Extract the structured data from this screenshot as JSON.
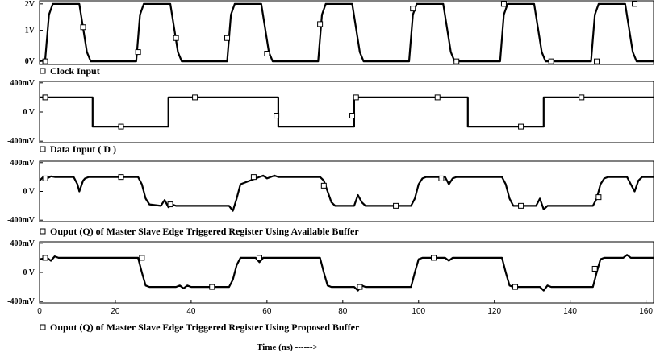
{
  "chart_data": {
    "type": "line",
    "xlabel": "Time (ns) ------>",
    "xlim": [
      0,
      162
    ],
    "xticks": [
      0,
      20,
      40,
      60,
      80,
      100,
      120,
      140,
      160
    ],
    "panels": [
      {
        "caption": "Clock Input",
        "ylim": [
          -0.1,
          1.95
        ],
        "yticks": [
          {
            "v": 1.85,
            "label": "2V"
          },
          {
            "v": 1.0,
            "label": "1V"
          },
          {
            "v": 0.0,
            "label": "0V"
          }
        ],
        "x": [
          0,
          1.5,
          2.5,
          3.5,
          10.5,
          12.5,
          13.5,
          25.5,
          26.5,
          27.5,
          34.5,
          36.5,
          37.5,
          49.5,
          50.5,
          51.5,
          58.5,
          60.5,
          61.5,
          73.5,
          74.5,
          75.5,
          82.5,
          84.5,
          85.5,
          97.5,
          98.5,
          99.5,
          106.5,
          108.5,
          109.5,
          121.5,
          122.5,
          123.5,
          130.5,
          132.5,
          133.5,
          145.5,
          146.5,
          147.5,
          154.5,
          156.5,
          157.5,
          162
        ],
        "y": [
          0,
          0.05,
          1.5,
          1.85,
          1.85,
          0.3,
          0,
          0,
          1.5,
          1.85,
          1.85,
          0.3,
          0,
          0,
          1.5,
          1.85,
          1.85,
          0.3,
          0,
          0,
          1.5,
          1.85,
          1.85,
          0.3,
          0,
          0,
          1.5,
          1.85,
          1.85,
          0.3,
          0,
          0,
          1.5,
          1.85,
          1.85,
          0.3,
          0,
          0,
          1.5,
          1.85,
          1.85,
          0.3,
          0,
          0
        ],
        "markers": [
          [
            1.5,
            0.0
          ],
          [
            11.5,
            1.1
          ],
          [
            26,
            0.3
          ],
          [
            36,
            0.75
          ],
          [
            49.5,
            0.75
          ],
          [
            60,
            0.25
          ],
          [
            74,
            1.2
          ],
          [
            98.5,
            1.7
          ],
          [
            110,
            0.0
          ],
          [
            122.5,
            1.85
          ],
          [
            135,
            0.0
          ],
          [
            147,
            0.0
          ],
          [
            157,
            1.85
          ]
        ]
      },
      {
        "caption": "Data Input ( D )",
        "ylim": [
          -0.42,
          0.42
        ],
        "yticks": [
          {
            "v": 0.4,
            "label": "400mV"
          },
          {
            "v": 0.0,
            "label": "0 V"
          },
          {
            "v": -0.4,
            "label": "-400mV"
          }
        ],
        "x": [
          0,
          14,
          14,
          34,
          34,
          63,
          63,
          83,
          83,
          113,
          113,
          133,
          133,
          162
        ],
        "y": [
          0.2,
          0.2,
          -0.2,
          -0.2,
          0.2,
          0.2,
          -0.2,
          -0.2,
          0.2,
          0.2,
          -0.2,
          -0.2,
          0.2,
          0.2
        ],
        "markers": [
          [
            1.5,
            0.2
          ],
          [
            21.5,
            -0.2
          ],
          [
            41,
            0.2
          ],
          [
            62.5,
            -0.05
          ],
          [
            82.5,
            -0.05
          ],
          [
            83.5,
            0.2
          ],
          [
            105,
            0.2
          ],
          [
            127,
            -0.2
          ],
          [
            143,
            0.2
          ]
        ]
      },
      {
        "caption": "Ouput (Q) of Master Slave Edge Triggered Register Using Available Buffer",
        "ylim": [
          -0.42,
          0.42
        ],
        "yticks": [
          {
            "v": 0.4,
            "label": "400mV"
          },
          {
            "v": 0.0,
            "label": "0 V"
          },
          {
            "v": -0.4,
            "label": "-400mV"
          }
        ],
        "x": [
          0,
          1,
          2,
          3,
          4,
          9,
          10,
          10.5,
          11.5,
          12,
          13,
          26,
          27,
          28,
          29,
          32,
          33,
          34,
          35,
          36,
          37,
          50,
          51,
          52,
          53,
          58,
          59,
          60,
          62,
          63,
          74,
          75,
          76,
          77,
          78,
          83,
          84,
          85,
          86,
          98,
          99,
          100,
          101,
          102,
          107,
          108,
          109,
          110,
          111,
          122,
          123,
          124,
          125,
          126,
          131,
          132,
          133,
          134,
          135,
          146,
          147,
          148,
          149,
          150,
          155,
          156,
          157,
          158,
          159,
          162
        ],
        "y": [
          0.15,
          0.2,
          0.18,
          0.21,
          0.2,
          0.2,
          0.1,
          0.0,
          0.15,
          0.18,
          0.2,
          0.2,
          0.1,
          -0.1,
          -0.18,
          -0.2,
          -0.12,
          -0.22,
          -0.18,
          -0.2,
          -0.2,
          -0.2,
          -0.27,
          -0.1,
          0.1,
          0.2,
          0.22,
          0.18,
          0.22,
          0.2,
          0.2,
          0.15,
          0.0,
          -0.15,
          -0.2,
          -0.2,
          -0.05,
          -0.15,
          -0.2,
          -0.2,
          -0.1,
          0.1,
          0.18,
          0.2,
          0.2,
          0.1,
          0.18,
          0.2,
          0.2,
          0.2,
          0.1,
          -0.1,
          -0.2,
          -0.2,
          -0.2,
          -0.1,
          -0.25,
          -0.2,
          -0.2,
          -0.2,
          -0.1,
          0.1,
          0.18,
          0.2,
          0.2,
          0.1,
          0.0,
          0.15,
          0.2,
          0.2
        ],
        "markers": [
          [
            1.5,
            0.18
          ],
          [
            21.5,
            0.2
          ],
          [
            34.5,
            -0.18
          ],
          [
            56.5,
            0.2
          ],
          [
            75,
            0.08
          ],
          [
            94,
            -0.2
          ],
          [
            106,
            0.18
          ],
          [
            127,
            -0.2
          ],
          [
            147.5,
            -0.08
          ]
        ]
      },
      {
        "caption": "Ouput (Q) of Master Slave Edge Triggered Register Using Proposed Buffer",
        "ylim": [
          -0.42,
          0.42
        ],
        "yticks": [
          {
            "v": 0.4,
            "label": "400mV"
          },
          {
            "v": 0.0,
            "label": "0 V"
          },
          {
            "v": -0.4,
            "label": "-400mV"
          }
        ],
        "x": [
          0,
          2,
          3,
          4,
          5,
          26,
          27,
          28,
          29,
          36,
          37,
          38,
          39,
          40,
          50,
          51,
          52,
          53,
          57,
          58,
          59,
          74,
          75,
          76,
          77,
          83,
          84,
          85,
          86,
          98,
          99,
          100,
          101,
          107,
          108,
          109,
          122,
          123,
          124,
          125,
          132,
          133,
          134,
          135,
          146,
          147,
          148,
          149,
          154,
          155,
          156,
          162
        ],
        "y": [
          0.18,
          0.2,
          0.16,
          0.22,
          0.2,
          0.2,
          0.0,
          -0.18,
          -0.2,
          -0.2,
          -0.18,
          -0.22,
          -0.18,
          -0.2,
          -0.2,
          -0.1,
          0.1,
          0.2,
          0.2,
          0.14,
          0.2,
          0.2,
          0.0,
          -0.18,
          -0.2,
          -0.2,
          -0.25,
          -0.18,
          -0.2,
          -0.2,
          0.0,
          0.18,
          0.2,
          0.2,
          0.16,
          0.2,
          0.2,
          0.0,
          -0.18,
          -0.2,
          -0.2,
          -0.25,
          -0.18,
          -0.2,
          -0.2,
          0.0,
          0.18,
          0.2,
          0.2,
          0.24,
          0.2,
          0.2
        ],
        "markers": [
          [
            1.5,
            0.2
          ],
          [
            27,
            0.2
          ],
          [
            45.5,
            -0.2
          ],
          [
            58,
            0.2
          ],
          [
            84.5,
            -0.2
          ],
          [
            104,
            0.2
          ],
          [
            125.5,
            -0.2
          ],
          [
            146.5,
            0.05
          ]
        ]
      }
    ]
  }
}
